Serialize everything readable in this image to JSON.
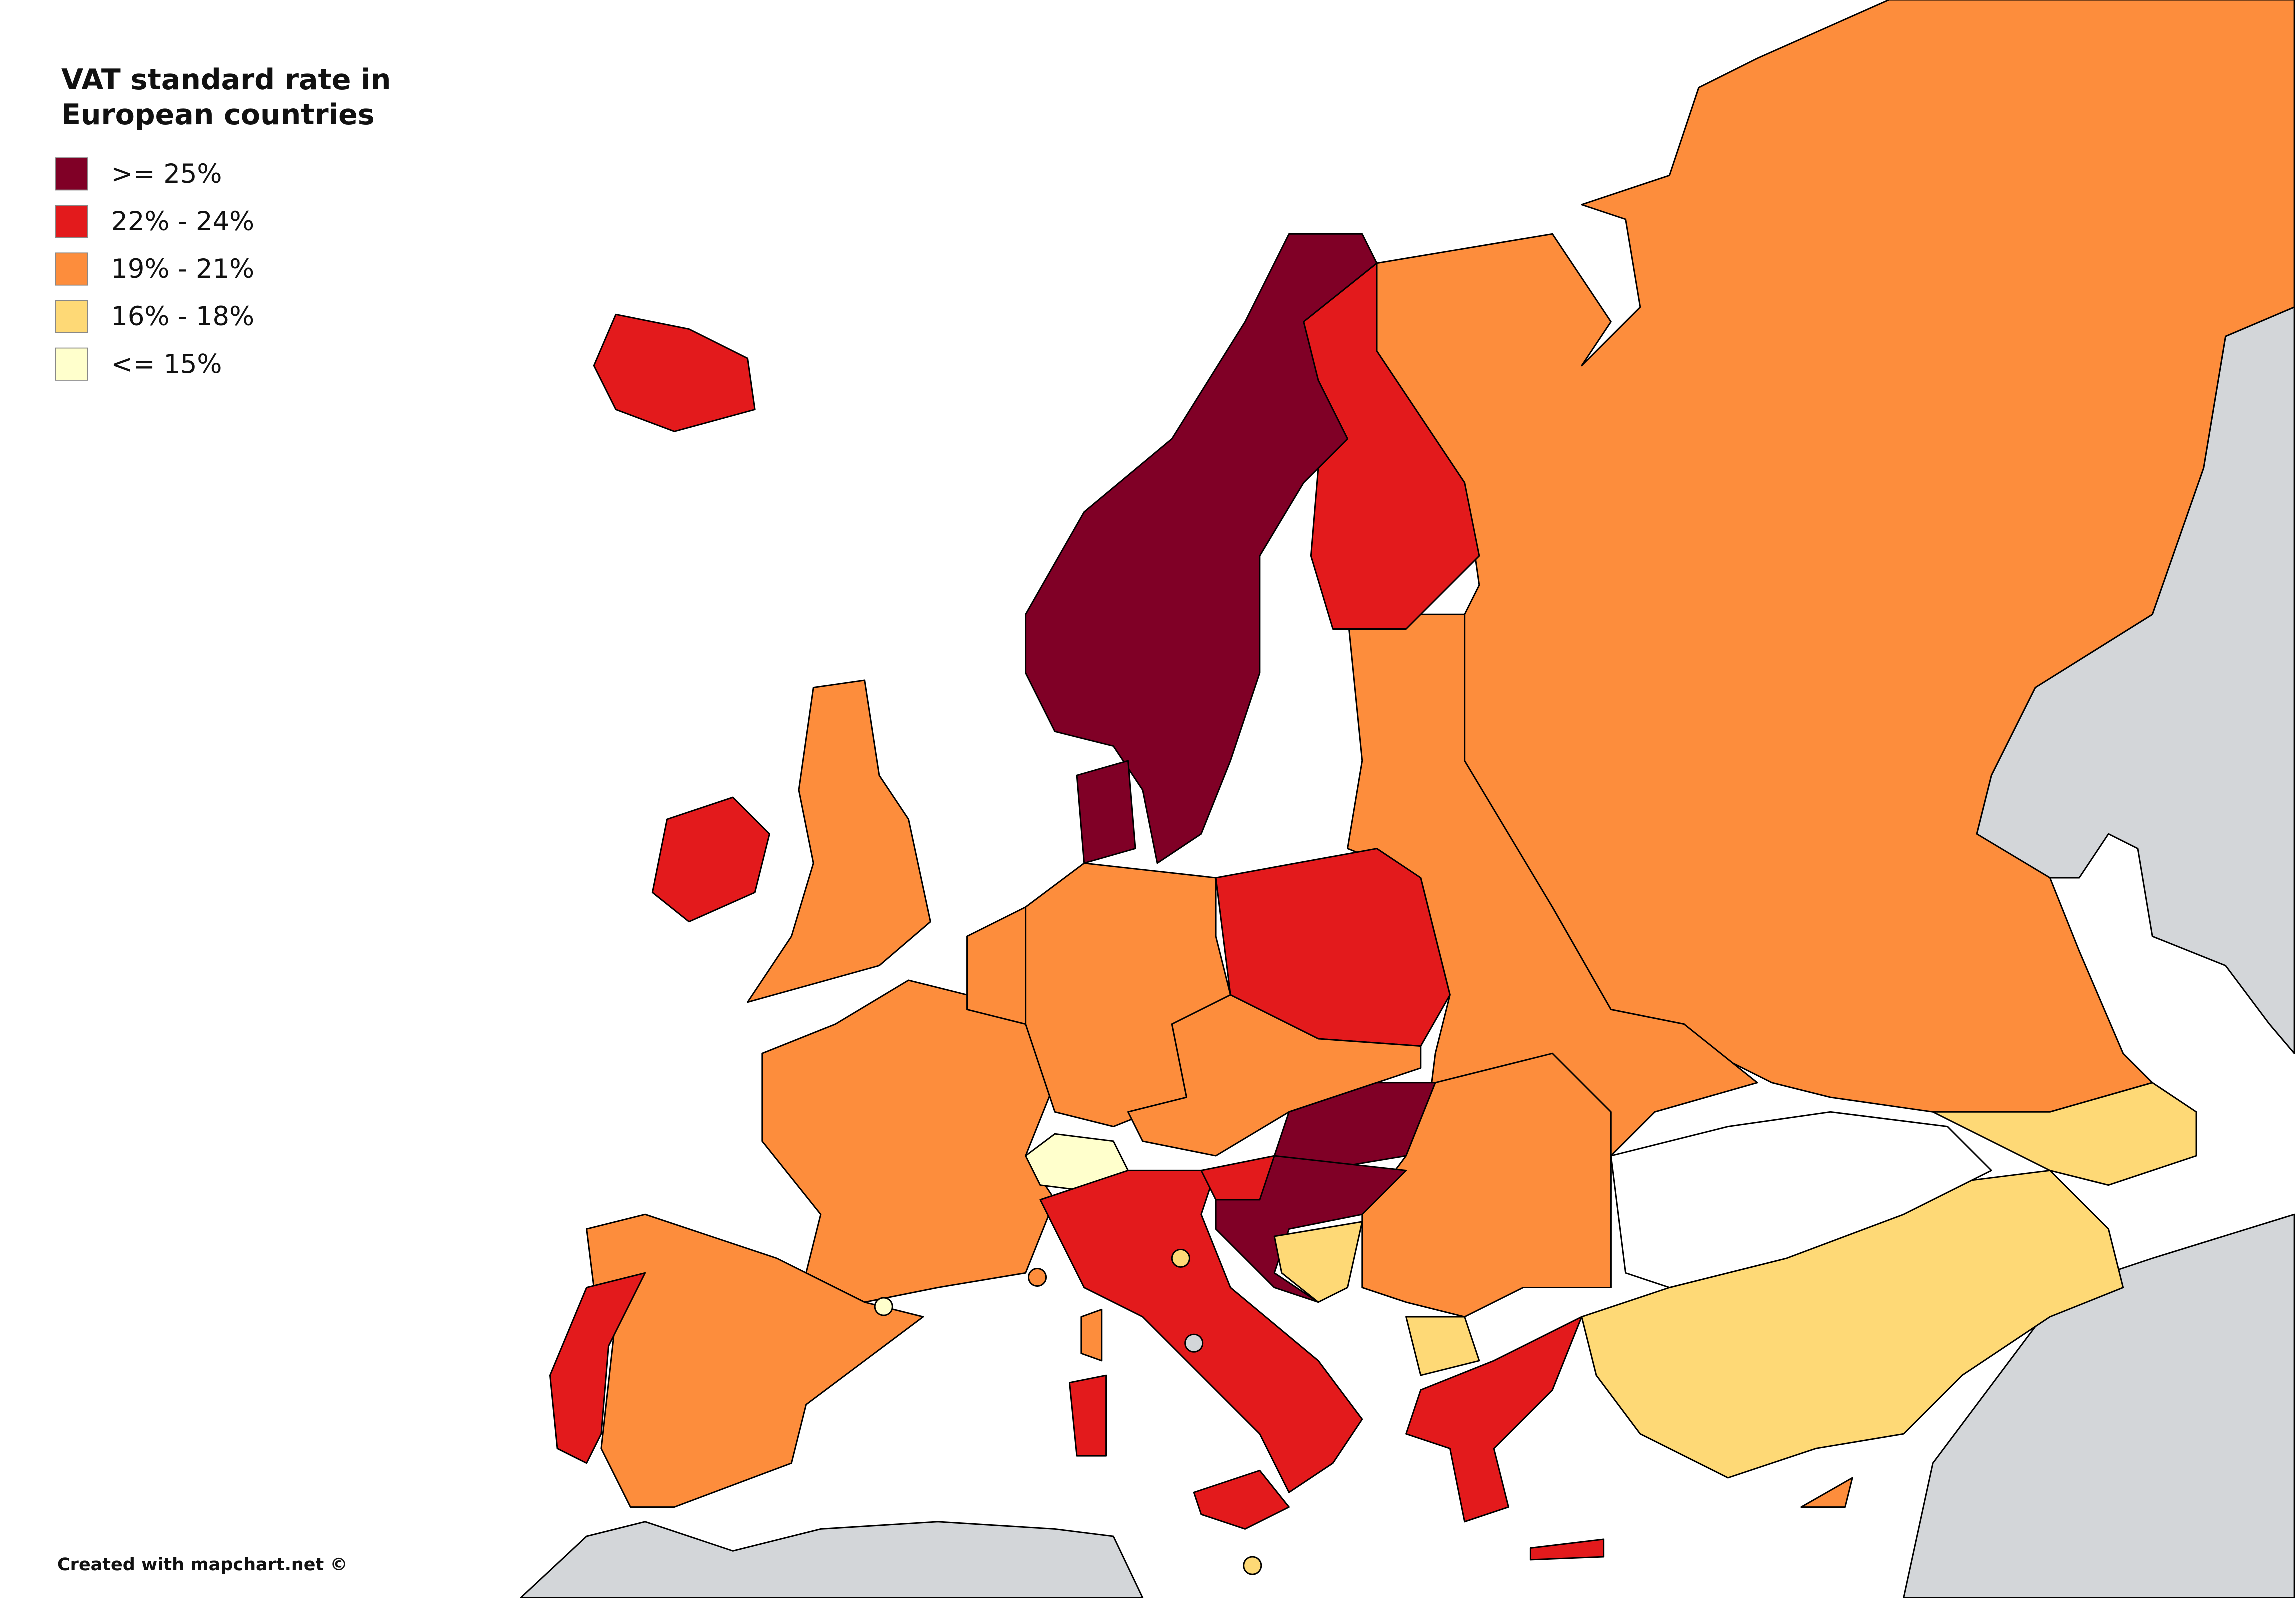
{
  "title": "VAT standard rate in European countries",
  "legend": [
    {
      "label": ">= 25%",
      "color": "#800026"
    },
    {
      "label": "22% - 24%",
      "color": "#e31a1c"
    },
    {
      "label": "19% - 21%",
      "color": "#fd8d3c"
    },
    {
      "label": "16% - 18%",
      "color": "#fed976"
    },
    {
      "label": "<= 15%",
      "color": "#ffffcc"
    }
  ],
  "credit": "Created with mapchart.net ©"
}
